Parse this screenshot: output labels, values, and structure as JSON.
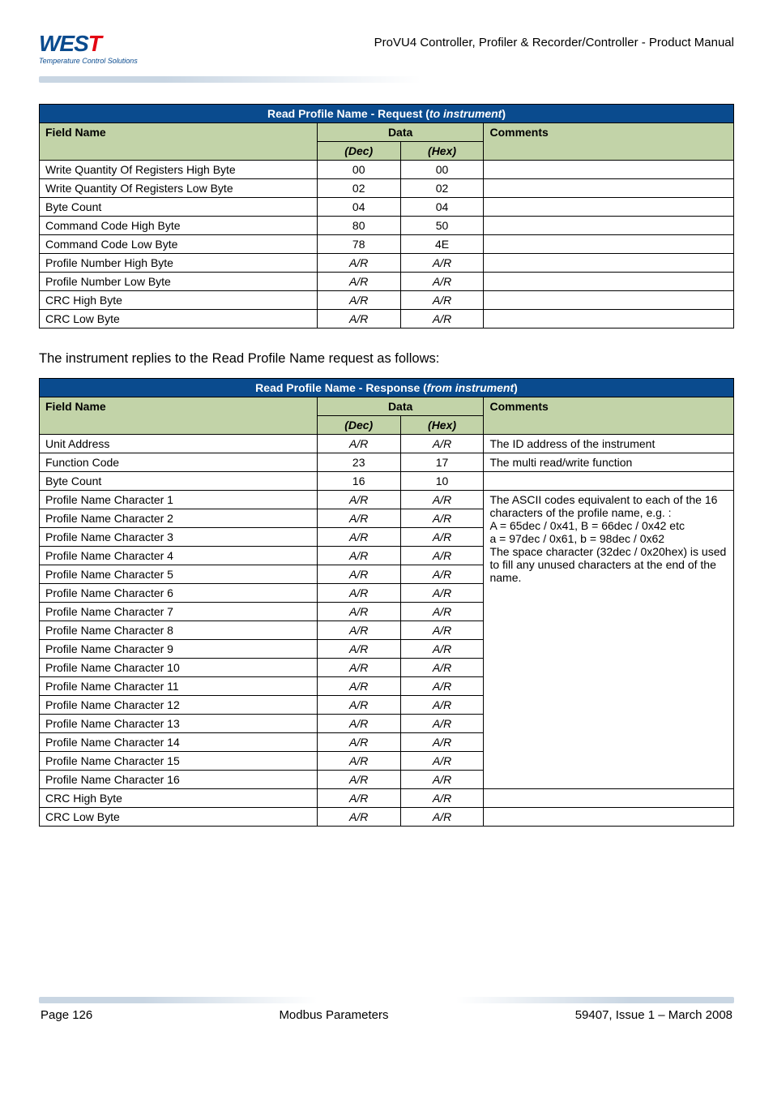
{
  "header": {
    "logo_main_pre": "WES",
    "logo_main_accent": "T",
    "logo_tag": "Temperature Control Solutions",
    "doc_title": "ProVU4 Controller, Profiler & Recorder/Controller - Product Manual"
  },
  "table1": {
    "caption_plain": "Read Profile Name - Request (",
    "caption_ital": "to instrument",
    "caption_close": ")",
    "col_field": "Field Name",
    "col_data": "Data",
    "col_comments": "Comments",
    "sub_dec": "(Dec)",
    "sub_hex": "(Hex)",
    "rows": [
      {
        "field": "Write Quantity Of Registers High Byte",
        "dec": "00",
        "hex": "00",
        "ital": false
      },
      {
        "field": "Write Quantity Of Registers Low Byte",
        "dec": "02",
        "hex": "02",
        "ital": false
      },
      {
        "field": "Byte Count",
        "dec": "04",
        "hex": "04",
        "ital": false
      },
      {
        "field": "Command Code High Byte",
        "dec": "80",
        "hex": "50",
        "ital": false
      },
      {
        "field": "Command Code Low Byte",
        "dec": "78",
        "hex": "4E",
        "ital": false
      },
      {
        "field": "Profile Number High Byte",
        "dec": "A/R",
        "hex": "A/R",
        "ital": true
      },
      {
        "field": "Profile Number Low Byte",
        "dec": "A/R",
        "hex": "A/R",
        "ital": true
      },
      {
        "field": "CRC High Byte",
        "dec": "A/R",
        "hex": "A/R",
        "ital": true
      },
      {
        "field": "CRC Low Byte",
        "dec": "A/R",
        "hex": "A/R",
        "ital": true
      }
    ]
  },
  "mid_text": "The instrument replies to the Read Profile Name request as follows:",
  "table2": {
    "caption_plain": "Read Profile Name - Response (",
    "caption_ital": "from instrument",
    "caption_close": ")",
    "col_field": "Field Name",
    "col_data": "Data",
    "col_comments": "Comments",
    "sub_dec": "(Dec)",
    "sub_hex": "(Hex)",
    "top_rows": [
      {
        "field": "Unit Address",
        "dec": "A/R",
        "hex": "A/R",
        "ital": true,
        "comment": "The ID address of the instrument"
      },
      {
        "field": "Function Code",
        "dec": "23",
        "hex": "17",
        "ital": false,
        "comment": "The multi read/write function"
      },
      {
        "field": "Byte Count",
        "dec": "16",
        "hex": "10",
        "ital": false,
        "comment": ""
      }
    ],
    "char_rows": [
      {
        "field": "Profile Name Character 1",
        "dec": "A/R",
        "hex": "A/R"
      },
      {
        "field": "Profile Name Character 2",
        "dec": "A/R",
        "hex": "A/R"
      },
      {
        "field": "Profile Name Character 3",
        "dec": "A/R",
        "hex": "A/R"
      },
      {
        "field": "Profile Name Character 4",
        "dec": "A/R",
        "hex": "A/R"
      },
      {
        "field": "Profile Name Character 5",
        "dec": "A/R",
        "hex": "A/R"
      },
      {
        "field": "Profile Name Character 6",
        "dec": "A/R",
        "hex": "A/R"
      },
      {
        "field": "Profile Name Character 7",
        "dec": "A/R",
        "hex": "A/R"
      },
      {
        "field": "Profile Name Character 8",
        "dec": "A/R",
        "hex": "A/R"
      },
      {
        "field": "Profile Name Character 9",
        "dec": "A/R",
        "hex": "A/R"
      },
      {
        "field": "Profile Name Character 10",
        "dec": "A/R",
        "hex": "A/R"
      },
      {
        "field": "Profile Name Character 11",
        "dec": "A/R",
        "hex": "A/R"
      },
      {
        "field": "Profile Name Character 12",
        "dec": "A/R",
        "hex": "A/R"
      },
      {
        "field": "Profile Name Character 13",
        "dec": "A/R",
        "hex": "A/R"
      },
      {
        "field": "Profile Name Character 14",
        "dec": "A/R",
        "hex": "A/R"
      },
      {
        "field": "Profile Name Character 15",
        "dec": "A/R",
        "hex": "A/R"
      },
      {
        "field": "Profile Name Character 16",
        "dec": "A/R",
        "hex": "A/R"
      }
    ],
    "char_comment_lines": [
      "The ASCII codes equivalent to each of the 16 characters of the profile name, e.g. :",
      "A = 65dec / 0x41, B = 66dec / 0x42 etc",
      "a = 97dec / 0x61, b = 98dec / 0x62",
      "The space character (32dec / 0x20hex) is used to fill any unused characters at the end of the name."
    ],
    "bottom_rows": [
      {
        "field": "CRC High Byte",
        "dec": "A/R",
        "hex": "A/R"
      },
      {
        "field": "CRC Low Byte",
        "dec": "A/R",
        "hex": "A/R"
      }
    ]
  },
  "footer": {
    "left": "Page 126",
    "center": "Modbus Parameters",
    "right": "59407, Issue 1 – March 2008"
  }
}
